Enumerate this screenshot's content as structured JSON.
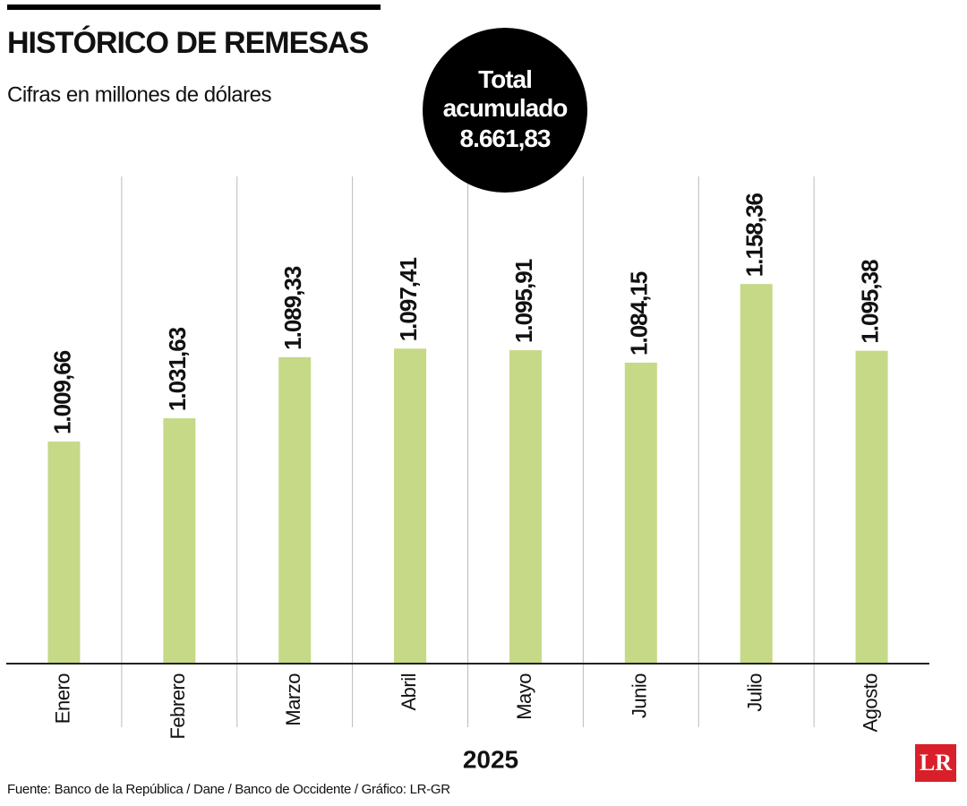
{
  "chart_data": {
    "type": "bar",
    "title": "HISTÓRICO DE REMESAS",
    "subtitle": "Cifras en millones de dólares",
    "total_label": "Total acumulado",
    "total_value": "8.661,83",
    "x_label": "2025",
    "source": "Fuente: Banco de la República / Dane / Banco de Occidente / Gráfico: LR-GR",
    "logo": "LR",
    "categories": [
      "Enero",
      "Febrero",
      "Marzo",
      "Abril",
      "Mayo",
      "Junio",
      "Julio",
      "Agosto"
    ],
    "values": [
      1009.66,
      1031.63,
      1089.33,
      1097.41,
      1095.91,
      1084.15,
      1158.36,
      1095.38
    ],
    "value_labels": [
      "1.009,66",
      "1.031,63",
      "1.089,33",
      "1.097,41",
      "1.095,91",
      "1.084,15",
      "1.158,36",
      "1.095,38"
    ],
    "color": "#c5d987",
    "ylim": [
      800,
      1260
    ]
  }
}
